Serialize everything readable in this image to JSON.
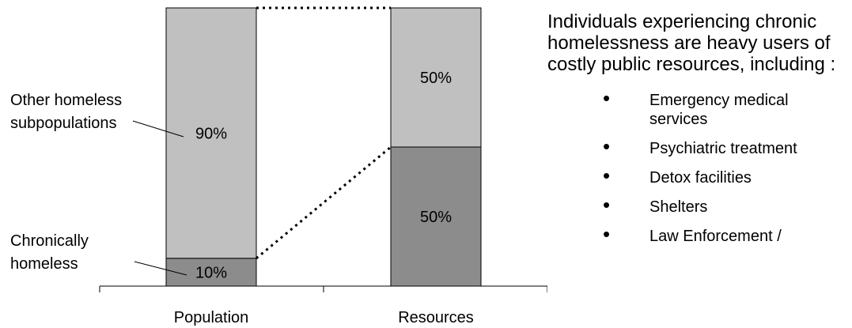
{
  "chart_data": {
    "type": "bar",
    "stacked": true,
    "percent_scale": true,
    "categories": [
      "Population",
      "Resources"
    ],
    "series": [
      {
        "key": "chronic",
        "color": "#8c8c8c",
        "values": [
          10,
          50
        ],
        "value_labels": [
          "10%",
          "50%"
        ]
      },
      {
        "key": "other",
        "color": "#c0c0c0",
        "values": [
          90,
          50
        ],
        "value_labels": [
          "90%",
          "50%"
        ]
      }
    ],
    "ylim": [
      0,
      100
    ],
    "annotations": {
      "other": "Other homeless\nsubpopulations",
      "chronic": "Chronically\nhomeless"
    },
    "grid": false,
    "legend": "none"
  },
  "side_panel": {
    "heading": "Individuals experiencing chronic homelessness are heavy users of costly public resources, including :",
    "bullet_glyph": "•",
    "items": [
      "Emergency medical services",
      "Psychiatric treatment",
      "Detox facilities",
      "Shelters",
      "Law Enforcement /"
    ]
  }
}
